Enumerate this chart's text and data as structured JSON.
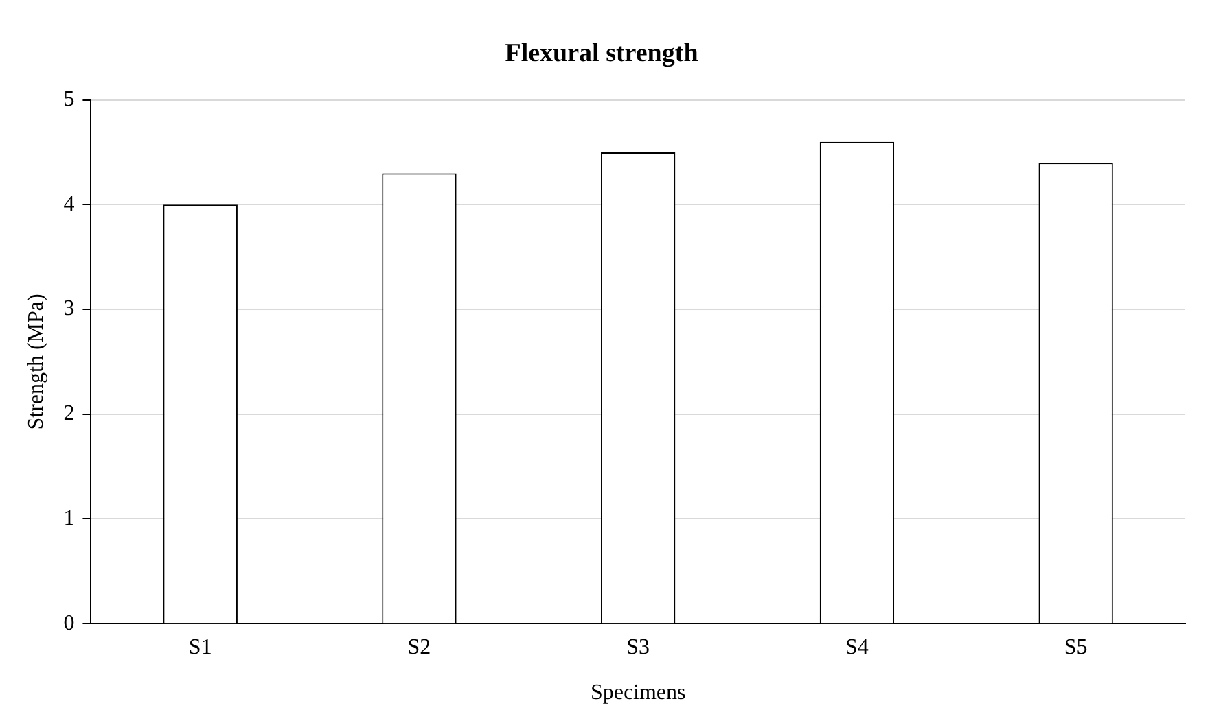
{
  "chart_data": {
    "type": "bar",
    "title": "Flexural strength",
    "xlabel": "Specimens",
    "ylabel": "Strength (MPa)",
    "categories": [
      "S1",
      "S2",
      "S3",
      "S4",
      "S5"
    ],
    "values": [
      4.0,
      4.3,
      4.5,
      4.6,
      4.4
    ],
    "color": "#ffffff",
    "ylim": [
      0,
      5
    ],
    "yticks": [
      0,
      1,
      2,
      3,
      4,
      5
    ],
    "grid": "y"
  }
}
